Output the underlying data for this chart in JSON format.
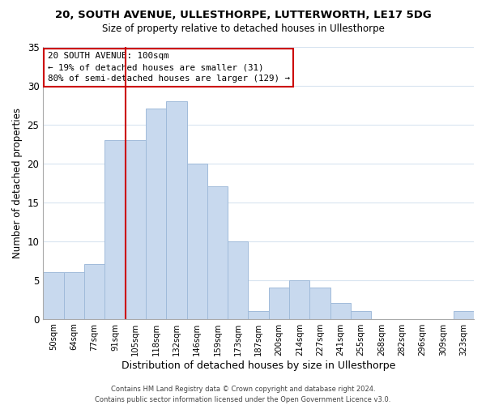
{
  "title": "20, SOUTH AVENUE, ULLESTHORPE, LUTTERWORTH, LE17 5DG",
  "subtitle": "Size of property relative to detached houses in Ullesthorpe",
  "xlabel": "Distribution of detached houses by size in Ullesthorpe",
  "ylabel": "Number of detached properties",
  "bar_labels": [
    "50sqm",
    "64sqm",
    "77sqm",
    "91sqm",
    "105sqm",
    "118sqm",
    "132sqm",
    "146sqm",
    "159sqm",
    "173sqm",
    "187sqm",
    "200sqm",
    "214sqm",
    "227sqm",
    "241sqm",
    "255sqm",
    "268sqm",
    "282sqm",
    "296sqm",
    "309sqm",
    "323sqm"
  ],
  "bar_values": [
    6,
    6,
    7,
    23,
    23,
    27,
    28,
    20,
    17,
    10,
    1,
    4,
    5,
    4,
    2,
    1,
    0,
    0,
    0,
    0,
    1
  ],
  "bar_color": "#c8d9ee",
  "bar_edge_color": "#a0bbda",
  "grid_color": "#d8e4f0",
  "red_line_index": 4,
  "annotation_text_line1": "20 SOUTH AVENUE: 100sqm",
  "annotation_text_line2": "← 19% of detached houses are smaller (31)",
  "annotation_text_line3": "80% of semi-detached houses are larger (129) →",
  "annotation_box_color": "#ffffff",
  "annotation_box_edge_color": "#cc0000",
  "red_line_color": "#cc0000",
  "footer_line1": "Contains HM Land Registry data © Crown copyright and database right 2024.",
  "footer_line2": "Contains public sector information licensed under the Open Government Licence v3.0.",
  "ylim": [
    0,
    35
  ],
  "yticks": [
    0,
    5,
    10,
    15,
    20,
    25,
    30,
    35
  ]
}
